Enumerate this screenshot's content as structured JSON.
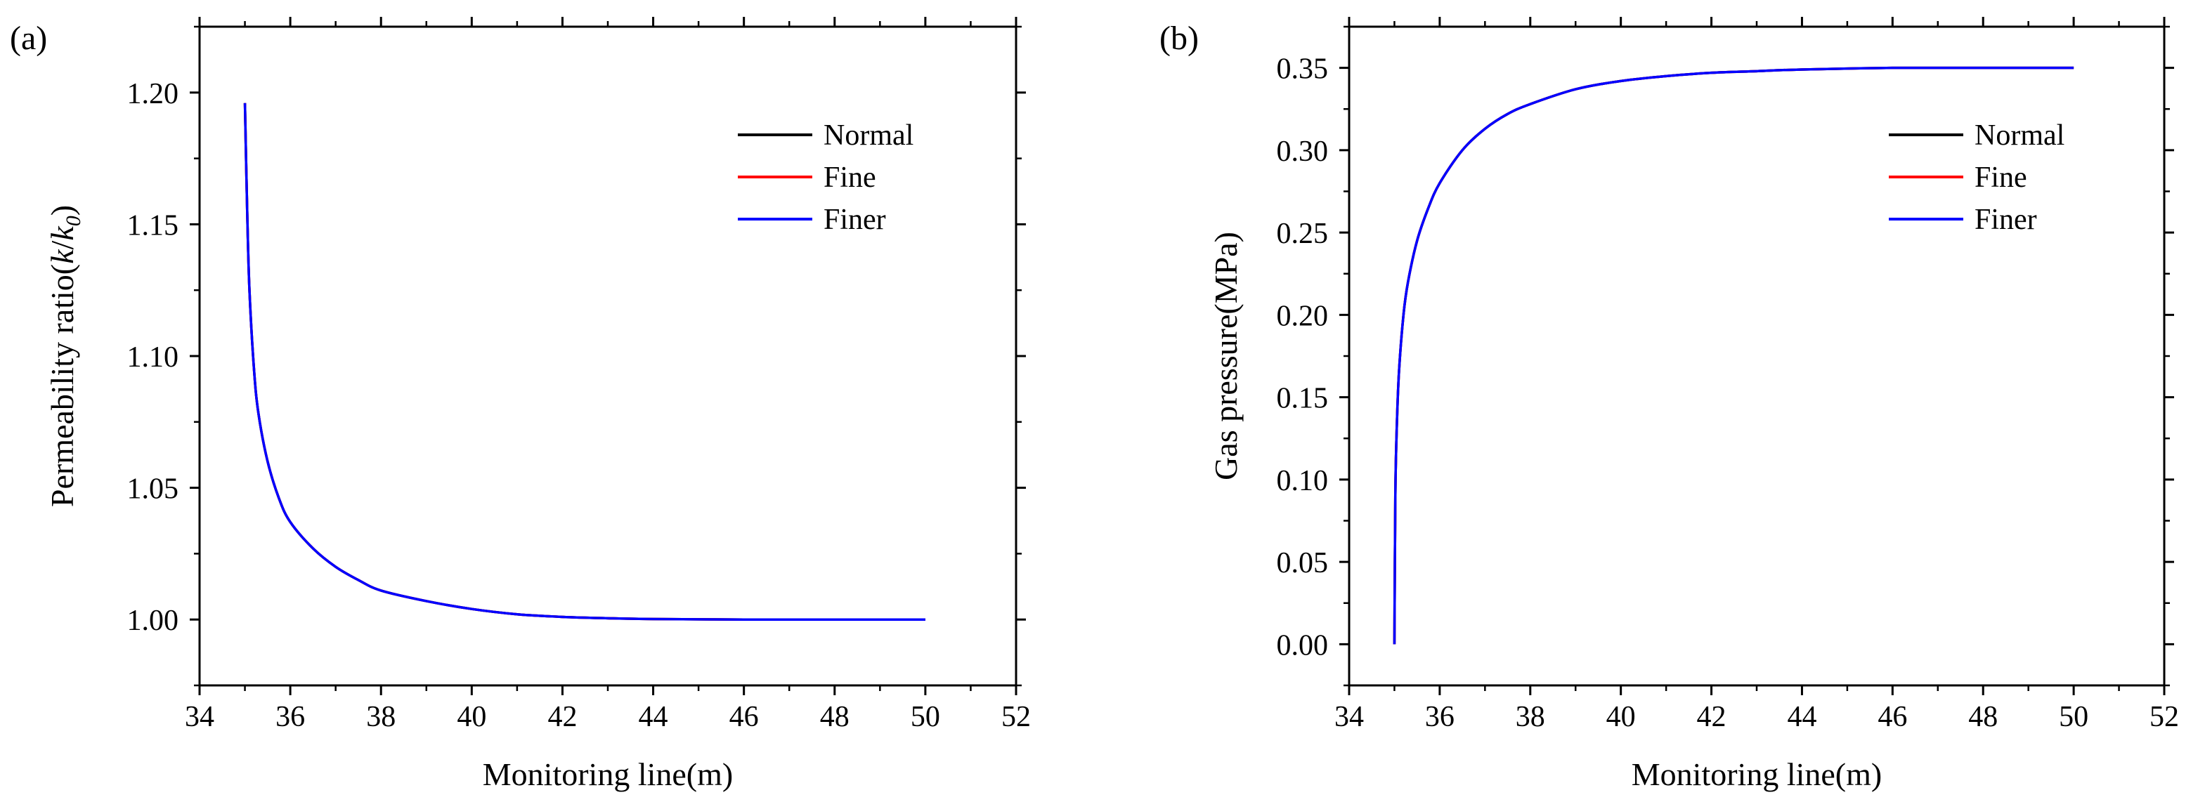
{
  "chart_data": [
    {
      "panel_label": "(a)",
      "type": "line",
      "title": "",
      "xlabel": "Monitoring line(m)",
      "ylabel": {
        "prefix": "Permeability ratio(",
        "k": "k",
        "slash": "/",
        "k0": "k",
        "sub": "0",
        "suffix": ")"
      },
      "xlim": [
        34,
        52
      ],
      "ylim": [
        0.975,
        1.225
      ],
      "xticks": [
        34,
        36,
        38,
        40,
        42,
        44,
        46,
        48,
        50,
        52
      ],
      "xtick_labels": [
        "34",
        "36",
        "38",
        "40",
        "42",
        "44",
        "46",
        "48",
        "50",
        "52"
      ],
      "yticks": [
        1.0,
        1.05,
        1.1,
        1.15,
        1.2
      ],
      "ytick_labels": [
        "1.00",
        "1.05",
        "1.10",
        "1.15",
        "1.20"
      ],
      "legend_position": "top-right",
      "series": [
        {
          "name": "Normal",
          "color": "#000000",
          "x": [
            35.0,
            35.05,
            35.1,
            35.2,
            35.3,
            35.5,
            35.75,
            36.0,
            36.5,
            37.0,
            37.5,
            38.0,
            39.0,
            40.0,
            41.0,
            42.0,
            43.0,
            44.0,
            46.0,
            48.0,
            50.0
          ],
          "values": [
            1.196,
            1.155,
            1.125,
            1.095,
            1.078,
            1.06,
            1.046,
            1.037,
            1.027,
            1.02,
            1.015,
            1.011,
            1.007,
            1.004,
            1.002,
            1.001,
            1.0005,
            1.0002,
            1.0,
            1.0,
            1.0
          ]
        },
        {
          "name": "Fine",
          "color": "#ff0000",
          "x": [
            35.0,
            35.05,
            35.1,
            35.2,
            35.3,
            35.5,
            35.75,
            36.0,
            36.5,
            37.0,
            37.5,
            38.0,
            39.0,
            40.0,
            41.0,
            42.0,
            43.0,
            44.0,
            46.0,
            48.0,
            50.0
          ],
          "values": [
            1.196,
            1.155,
            1.125,
            1.095,
            1.078,
            1.06,
            1.046,
            1.037,
            1.027,
            1.02,
            1.015,
            1.011,
            1.007,
            1.004,
            1.002,
            1.001,
            1.0005,
            1.0002,
            1.0,
            1.0,
            1.0
          ]
        },
        {
          "name": "Finer",
          "color": "#0000ff",
          "x": [
            35.0,
            35.05,
            35.1,
            35.2,
            35.3,
            35.5,
            35.75,
            36.0,
            36.5,
            37.0,
            37.5,
            38.0,
            39.0,
            40.0,
            41.0,
            42.0,
            43.0,
            44.0,
            46.0,
            48.0,
            50.0
          ],
          "values": [
            1.196,
            1.155,
            1.125,
            1.095,
            1.078,
            1.06,
            1.046,
            1.037,
            1.027,
            1.02,
            1.015,
            1.011,
            1.007,
            1.004,
            1.002,
            1.001,
            1.0005,
            1.0002,
            1.0,
            1.0,
            1.0
          ]
        }
      ]
    },
    {
      "panel_label": "(b)",
      "type": "line",
      "title": "",
      "xlabel": "Monitoring line(m)",
      "ylabel": "Gas pressure(MPa)",
      "xlim": [
        34,
        52
      ],
      "ylim": [
        -0.025,
        0.375
      ],
      "xticks": [
        34,
        36,
        38,
        40,
        42,
        44,
        46,
        48,
        50,
        52
      ],
      "xtick_labels": [
        "34",
        "36",
        "38",
        "40",
        "42",
        "44",
        "46",
        "48",
        "50",
        "52"
      ],
      "yticks": [
        0.0,
        0.05,
        0.1,
        0.15,
        0.2,
        0.25,
        0.3,
        0.35
      ],
      "ytick_labels": [
        "0.00",
        "0.05",
        "0.10",
        "0.15",
        "0.20",
        "0.25",
        "0.30",
        "0.35"
      ],
      "legend_position": "top-right",
      "series": [
        {
          "name": "Normal",
          "color": "#000000",
          "x": [
            35.0,
            35.02,
            35.05,
            35.1,
            35.2,
            35.3,
            35.5,
            35.75,
            36.0,
            36.5,
            37.0,
            37.5,
            38.0,
            39.0,
            40.0,
            41.0,
            42.0,
            43.0,
            44.0,
            46.0,
            48.0,
            50.0
          ],
          "values": [
            0.0,
            0.09,
            0.13,
            0.165,
            0.2,
            0.22,
            0.245,
            0.265,
            0.28,
            0.3,
            0.313,
            0.322,
            0.328,
            0.337,
            0.342,
            0.345,
            0.347,
            0.348,
            0.349,
            0.35,
            0.35,
            0.35
          ]
        },
        {
          "name": "Fine",
          "color": "#ff0000",
          "x": [
            35.0,
            35.02,
            35.05,
            35.1,
            35.2,
            35.3,
            35.5,
            35.75,
            36.0,
            36.5,
            37.0,
            37.5,
            38.0,
            39.0,
            40.0,
            41.0,
            42.0,
            43.0,
            44.0,
            46.0,
            48.0,
            50.0
          ],
          "values": [
            0.0,
            0.09,
            0.13,
            0.165,
            0.2,
            0.22,
            0.245,
            0.265,
            0.28,
            0.3,
            0.313,
            0.322,
            0.328,
            0.337,
            0.342,
            0.345,
            0.347,
            0.348,
            0.349,
            0.35,
            0.35,
            0.35
          ]
        },
        {
          "name": "Finer",
          "color": "#0000ff",
          "x": [
            35.0,
            35.02,
            35.05,
            35.1,
            35.2,
            35.3,
            35.5,
            35.75,
            36.0,
            36.5,
            37.0,
            37.5,
            38.0,
            39.0,
            40.0,
            41.0,
            42.0,
            43.0,
            44.0,
            46.0,
            48.0,
            50.0
          ],
          "values": [
            0.0,
            0.09,
            0.13,
            0.165,
            0.2,
            0.22,
            0.245,
            0.265,
            0.28,
            0.3,
            0.313,
            0.322,
            0.328,
            0.337,
            0.342,
            0.345,
            0.347,
            0.348,
            0.349,
            0.35,
            0.35,
            0.35
          ]
        }
      ]
    }
  ]
}
